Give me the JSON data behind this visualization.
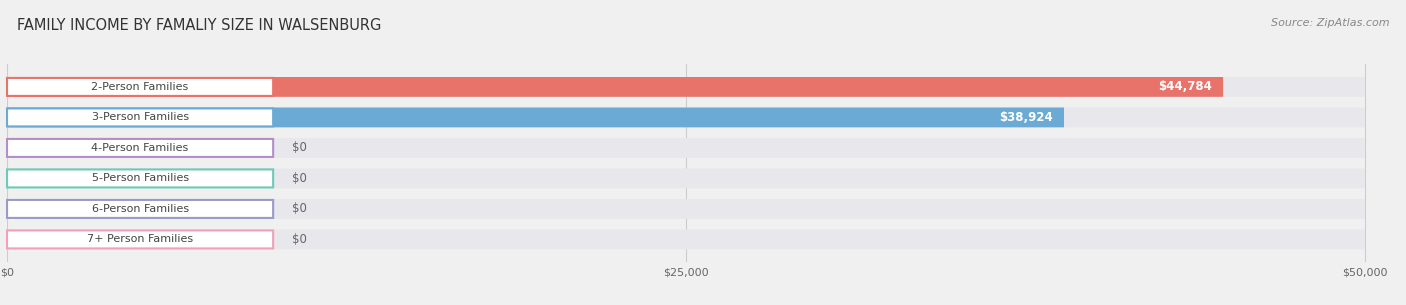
{
  "title": "FAMILY INCOME BY FAMALIY SIZE IN WALSENBURG",
  "source": "Source: ZipAtlas.com",
  "categories": [
    "2-Person Families",
    "3-Person Families",
    "4-Person Families",
    "5-Person Families",
    "6-Person Families",
    "7+ Person Families"
  ],
  "values": [
    44784,
    38924,
    0,
    0,
    0,
    0
  ],
  "bar_colors": [
    "#e8736b",
    "#6aaad4",
    "#b48ec8",
    "#6dcab8",
    "#9999cc",
    "#f0a0b8"
  ],
  "value_labels": [
    "$44,784",
    "$38,924",
    "$0",
    "$0",
    "$0",
    "$0"
  ],
  "xlim": [
    0,
    50000
  ],
  "xticks": [
    0,
    25000,
    50000
  ],
  "xtick_labels": [
    "$0",
    "$25,000",
    "$50,000"
  ],
  "bg_color": "#f0f0f0",
  "bar_bg_color": "#e8e8ec",
  "title_fontsize": 10.5,
  "source_fontsize": 8,
  "label_fontsize": 8,
  "value_fontsize": 8.5,
  "bar_height": 0.65
}
